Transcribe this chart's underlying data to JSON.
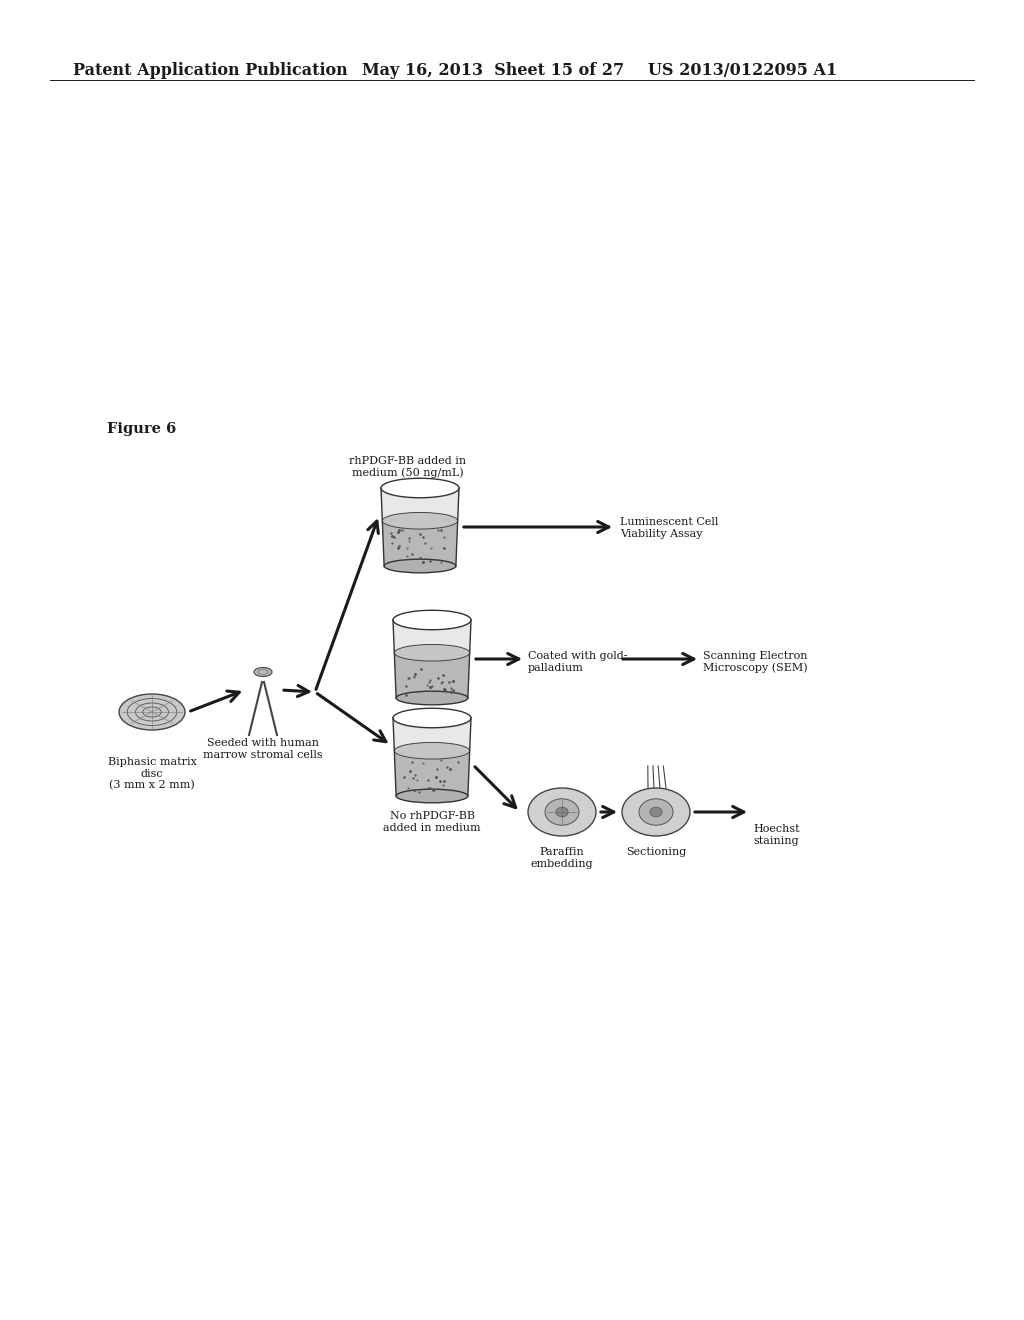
{
  "header_left": "Patent Application Publication",
  "header_mid": "May 16, 2013  Sheet 15 of 27",
  "header_right": "US 2013/0122095 A1",
  "figure_label": "Figure 6",
  "bg_color": "#ffffff",
  "text_color": "#1a1a1a",
  "labels": {
    "biphasic": "Biphasic matrix\ndisc\n(3 mm x 2 mm)",
    "seeded": "Seeded with human\nmarrow stromal cells",
    "rhpdgf_label": "rhPDGF-BB added in\nmedium (50 ng/mL)",
    "no_rhpdgf_label": "No rhPDGF-BB\nadded in medium",
    "luminescent": "Luminescent Cell\nViability Assay",
    "coated": "Coated with gold-\npalladium",
    "sem": "Scanning Electron\nMicroscopy (SEM)",
    "paraffin": "Paraffin\nembedding",
    "sectioning": "Sectioning",
    "hoechst": "Hoechst\nstaining"
  },
  "fig_w": 10.24,
  "fig_h": 13.2,
  "dpi": 100
}
